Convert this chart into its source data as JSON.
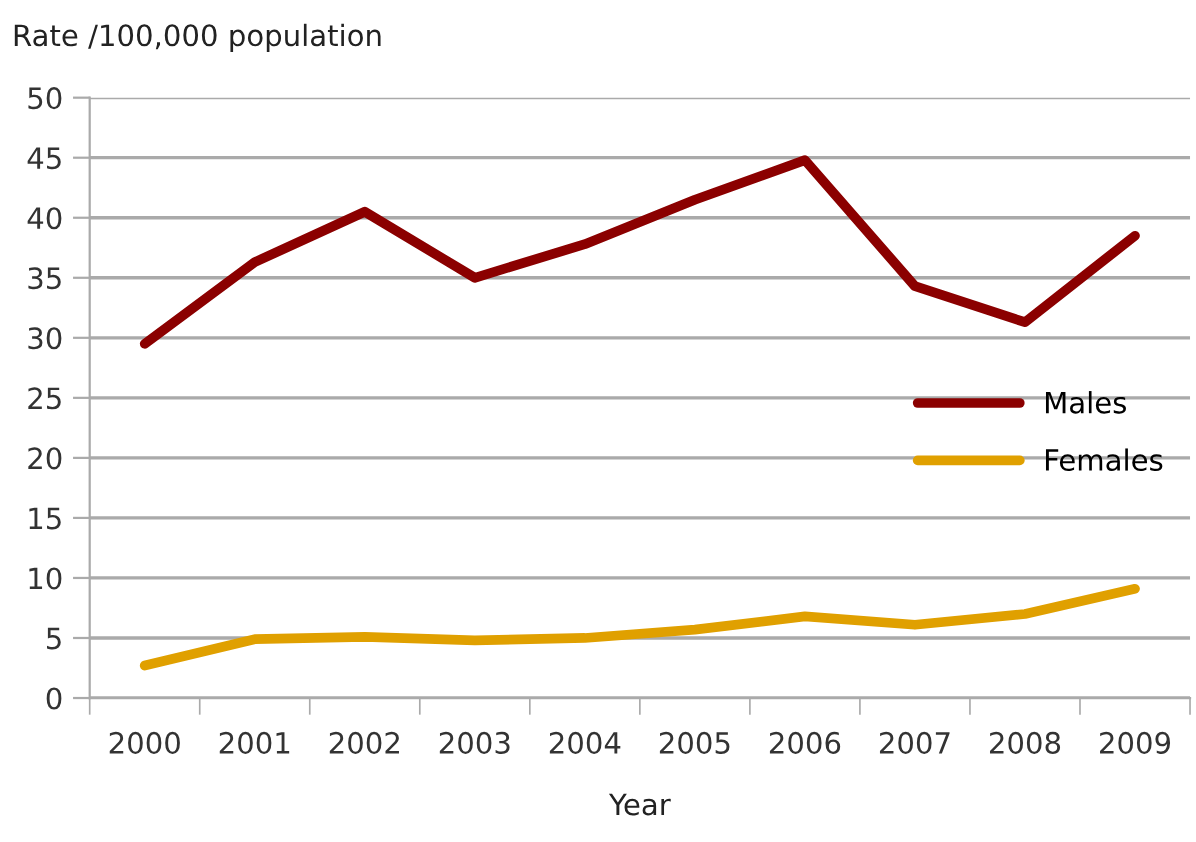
{
  "chart_data": {
    "type": "line",
    "ylabel": "Rate /100,000 population",
    "xlabel": "Year",
    "categories": [
      "2000",
      "2001",
      "2002",
      "2003",
      "2004",
      "2005",
      "2006",
      "2007",
      "2008",
      "2009"
    ],
    "series": [
      {
        "name": "Males",
        "color": "#8b0000",
        "values": [
          29.5,
          36.3,
          40.5,
          35,
          37.8,
          41.5,
          44.8,
          34.3,
          31.3,
          38.5
        ]
      },
      {
        "name": "Females",
        "color": "#e0a000",
        "values": [
          2.7,
          4.9,
          5.1,
          4.8,
          5.0,
          5.7,
          6.8,
          6.1,
          7.0,
          9.1
        ]
      }
    ],
    "ylim": [
      0,
      50
    ],
    "yticks": [
      0,
      5,
      10,
      15,
      20,
      25,
      30,
      35,
      40,
      45,
      50
    ],
    "grid": "y",
    "legend": "right",
    "marker": "none",
    "line_style": "solid"
  }
}
